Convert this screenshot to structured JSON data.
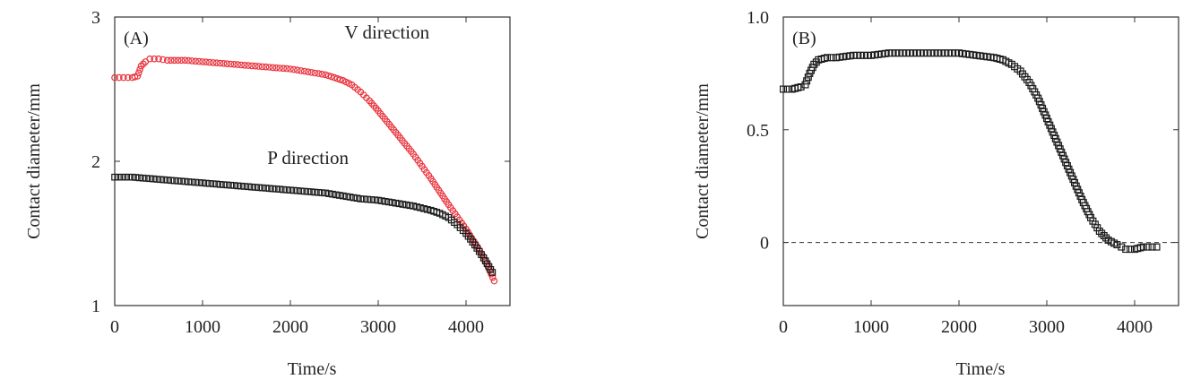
{
  "chart_data": [
    {
      "type": "scatter",
      "panel_label": "(A)",
      "xlabel": "Time/s",
      "ylabel": "Contact diameter/mm",
      "xlim": [
        0,
        4500
      ],
      "ylim": [
        1,
        3
      ],
      "xticks": [
        "0",
        "1000",
        "2000",
        "3000",
        "4000"
      ],
      "yticks": [
        "1",
        "2",
        "3"
      ],
      "series": [
        {
          "name": "V direction",
          "color": "#e8323c",
          "marker": "circle",
          "x": [
            0,
            100,
            200,
            260,
            300,
            350,
            400,
            500,
            600,
            800,
            1000,
            1200,
            1400,
            1600,
            1800,
            2000,
            2200,
            2400,
            2500,
            2600,
            2700,
            2800,
            2900,
            3000,
            3200,
            3400,
            3600,
            3800,
            4000,
            4200,
            4320
          ],
          "y": [
            2.58,
            2.58,
            2.58,
            2.59,
            2.66,
            2.69,
            2.71,
            2.71,
            2.7,
            2.7,
            2.69,
            2.68,
            2.67,
            2.66,
            2.65,
            2.64,
            2.62,
            2.6,
            2.58,
            2.56,
            2.53,
            2.48,
            2.42,
            2.35,
            2.2,
            2.05,
            1.88,
            1.7,
            1.53,
            1.34,
            1.17
          ]
        },
        {
          "name": "P direction",
          "color": "#1a1a1a",
          "marker": "square",
          "x": [
            0,
            200,
            400,
            600,
            800,
            1000,
            1200,
            1400,
            1600,
            1800,
            2000,
            2200,
            2400,
            2600,
            2800,
            3000,
            3200,
            3400,
            3600,
            3700,
            3800,
            3900,
            4000,
            4100,
            4200,
            4300
          ],
          "y": [
            1.89,
            1.89,
            1.88,
            1.87,
            1.86,
            1.85,
            1.84,
            1.83,
            1.82,
            1.81,
            1.8,
            1.79,
            1.78,
            1.76,
            1.74,
            1.73,
            1.71,
            1.69,
            1.66,
            1.64,
            1.61,
            1.56,
            1.5,
            1.42,
            1.33,
            1.23
          ]
        }
      ],
      "annotations": [
        {
          "text": "V direction",
          "x": 3100,
          "y": 2.85
        },
        {
          "text": "P direction",
          "x": 2200,
          "y": 1.98
        }
      ]
    },
    {
      "type": "scatter",
      "panel_label": "(B)",
      "xlabel": "Time/s",
      "ylabel": "Contact diameter/mm",
      "xlim": [
        0,
        4500
      ],
      "ylim": [
        -0.28,
        1.0
      ],
      "xticks": [
        "0",
        "1000",
        "2000",
        "3000",
        "4000"
      ],
      "yticks": [
        "0",
        "0.5",
        "1.0"
      ],
      "reference_line_y": 0,
      "series": [
        {
          "color": "#1a1a1a",
          "marker": "square",
          "x": [
            0,
            100,
            200,
            250,
            300,
            350,
            400,
            500,
            600,
            800,
            1000,
            1200,
            1400,
            1600,
            1800,
            2000,
            2200,
            2400,
            2500,
            2600,
            2700,
            2800,
            2900,
            3000,
            3100,
            3200,
            3300,
            3400,
            3500,
            3600,
            3700,
            3800,
            3850,
            3900,
            3950,
            4000,
            4100,
            4200,
            4250
          ],
          "y": [
            0.68,
            0.68,
            0.69,
            0.7,
            0.75,
            0.79,
            0.81,
            0.82,
            0.82,
            0.83,
            0.83,
            0.84,
            0.84,
            0.84,
            0.84,
            0.84,
            0.83,
            0.82,
            0.81,
            0.79,
            0.76,
            0.71,
            0.64,
            0.55,
            0.46,
            0.37,
            0.28,
            0.19,
            0.11,
            0.05,
            0.01,
            -0.01,
            -0.02,
            -0.03,
            -0.03,
            -0.03,
            -0.02,
            -0.02,
            -0.02
          ]
        }
      ]
    }
  ]
}
